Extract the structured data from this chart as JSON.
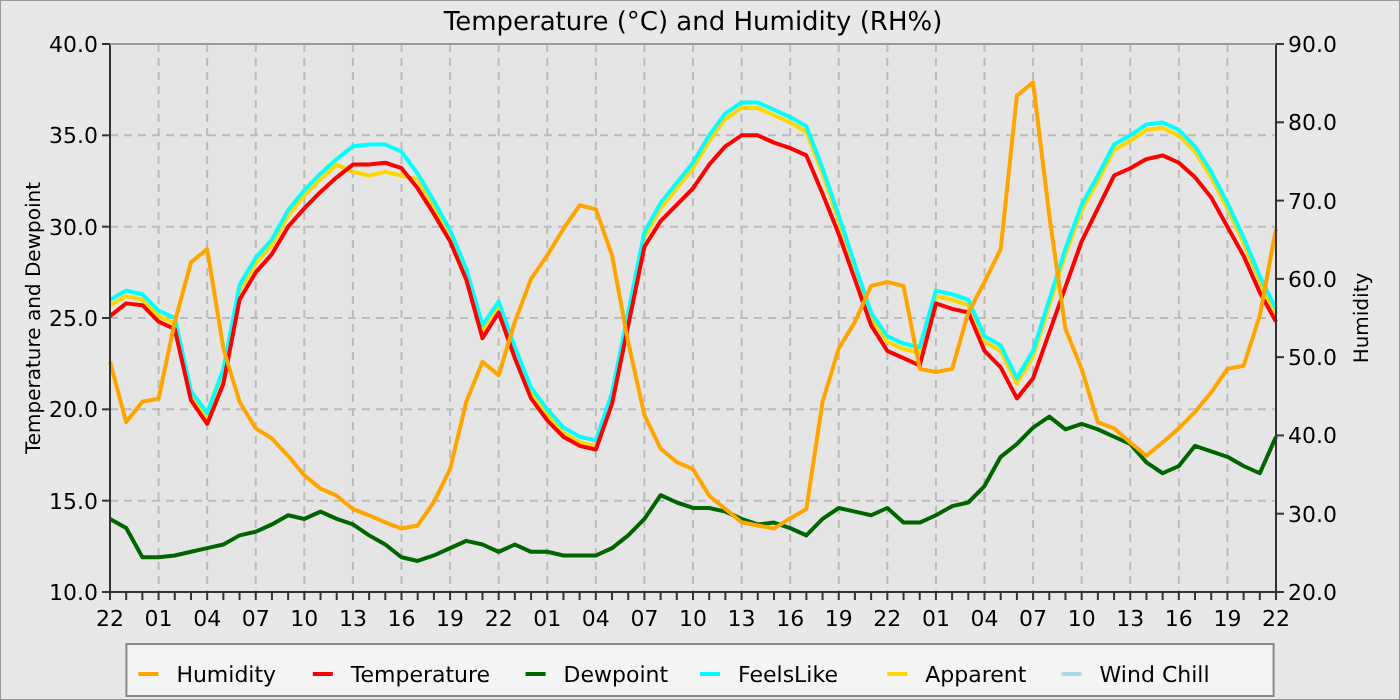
{
  "chart_data": {
    "type": "line",
    "title": "Temperature (°C) and Humidity (RH%)",
    "ylabel": "Temperature and Dewpoint",
    "y2label": "Humidity",
    "grid": true,
    "legend": "bottom",
    "categories": [
      "22",
      null,
      null,
      "01",
      null,
      null,
      "04",
      null,
      null,
      "07",
      null,
      null,
      "10",
      null,
      null,
      "13",
      null,
      null,
      "16",
      null,
      null,
      "19",
      null,
      null,
      "22",
      null,
      null,
      "01",
      null,
      null,
      "04",
      null,
      null,
      "07",
      null,
      null,
      "10",
      null,
      null,
      "13",
      null,
      null,
      "16",
      null,
      null,
      "19",
      null,
      null,
      "22",
      null,
      null,
      "01",
      null,
      null,
      "04",
      null,
      null,
      "07",
      null,
      null,
      "10",
      null,
      null,
      "13",
      null,
      null,
      "16",
      null,
      null,
      "19",
      null,
      null,
      "22"
    ],
    "ylim": [
      10,
      40
    ],
    "yticks": [
      {
        "value": 10,
        "label": "10.0"
      },
      {
        "value": 15,
        "label": "15.0"
      },
      {
        "value": 20,
        "label": "20.0"
      },
      {
        "value": 25,
        "label": "25.0"
      },
      {
        "value": 30,
        "label": "30.0"
      },
      {
        "value": 35,
        "label": "35.0"
      },
      {
        "value": 40,
        "label": "40.0"
      }
    ],
    "y2lim": [
      20,
      90
    ],
    "y2ticks": [
      {
        "value": 20,
        "label": "20.0"
      },
      {
        "value": 30,
        "label": "30.0"
      },
      {
        "value": 40,
        "label": "40.0"
      },
      {
        "value": 50,
        "label": "50.0"
      },
      {
        "value": 60,
        "label": "60.0"
      },
      {
        "value": 70,
        "label": "70.0"
      },
      {
        "value": 80,
        "label": "80.0"
      },
      {
        "value": 90,
        "label": "90.0"
      }
    ],
    "series": [
      {
        "name": "Humidity",
        "color": "#ffa500",
        "axis": "y2",
        "values": [
          49.4,
          41.7,
          44.3,
          44.7,
          54.5,
          62.1,
          63.8,
          51.1,
          44.3,
          40.9,
          39.6,
          37.4,
          34.9,
          33.2,
          32.3,
          30.6,
          29.8,
          28.9,
          28.1,
          28.5,
          31.5,
          35.7,
          44.3,
          49.4,
          47.7,
          54.5,
          60.0,
          63.0,
          66.4,
          69.4,
          68.9,
          63.0,
          51.9,
          42.6,
          38.3,
          36.6,
          35.7,
          32.3,
          30.6,
          28.9,
          28.5,
          28.1,
          29.4,
          30.6,
          44.3,
          51.1,
          54.5,
          59.1,
          59.6,
          59.1,
          48.5,
          48.1,
          48.5,
          55.7,
          59.6,
          63.8,
          83.4,
          85.1,
          68.1,
          53.6,
          48.5,
          41.7,
          40.9,
          39.1,
          37.4,
          39.1,
          40.9,
          43.0,
          45.5,
          48.5,
          48.9,
          55.3,
          66.4
        ]
      },
      {
        "name": "Temperature",
        "color": "#ff0000",
        "values": [
          25.1,
          25.8,
          25.7,
          24.8,
          24.4,
          20.5,
          19.2,
          21.4,
          26.0,
          27.5,
          28.5,
          30.0,
          31.0,
          31.9,
          32.7,
          33.4,
          33.4,
          33.5,
          33.2,
          32.1,
          30.7,
          29.2,
          27.1,
          23.9,
          25.3,
          22.8,
          20.6,
          19.4,
          18.5,
          18.0,
          17.8,
          20.3,
          24.6,
          28.9,
          30.3,
          31.2,
          32.1,
          33.4,
          34.4,
          35.0,
          35.0,
          34.6,
          34.3,
          33.9,
          31.8,
          29.6,
          27.1,
          24.6,
          23.2,
          22.8,
          22.4,
          25.8,
          25.5,
          25.3,
          23.2,
          22.3,
          20.6,
          21.7,
          24.2,
          26.7,
          29.2,
          31.0,
          32.8,
          33.2,
          33.7,
          33.9,
          33.5,
          32.7,
          31.6,
          30.0,
          28.4,
          26.4,
          24.8
        ]
      },
      {
        "name": "Dewpoint",
        "color": "#006400",
        "values": [
          14.0,
          13.5,
          11.9,
          11.9,
          12.0,
          12.2,
          12.4,
          12.6,
          13.1,
          13.3,
          13.7,
          14.2,
          14.0,
          14.4,
          14.0,
          13.7,
          13.1,
          12.6,
          11.9,
          11.7,
          12.0,
          12.4,
          12.8,
          12.6,
          12.2,
          12.6,
          12.2,
          12.2,
          12.0,
          12.0,
          12.0,
          12.4,
          13.1,
          14.0,
          15.3,
          14.9,
          14.6,
          14.6,
          14.4,
          14.0,
          13.7,
          13.8,
          13.5,
          13.1,
          14.0,
          14.6,
          14.4,
          14.2,
          14.6,
          13.8,
          13.8,
          14.2,
          14.7,
          14.9,
          15.8,
          17.4,
          18.1,
          19.0,
          19.6,
          18.9,
          19.2,
          18.9,
          18.5,
          18.1,
          17.1,
          16.5,
          16.9,
          18.0,
          17.7,
          17.4,
          16.9,
          16.5,
          18.5
        ]
      },
      {
        "name": "FeelsLike",
        "color": "#00ffff",
        "values": [
          26.0,
          26.5,
          26.3,
          25.4,
          25.0,
          21.0,
          19.8,
          22.2,
          26.8,
          28.3,
          29.3,
          30.9,
          32.0,
          32.9,
          33.7,
          34.4,
          34.5,
          34.5,
          34.1,
          32.9,
          31.4,
          29.8,
          27.7,
          24.6,
          25.9,
          23.4,
          21.2,
          20.0,
          19.0,
          18.5,
          18.3,
          20.9,
          25.3,
          29.7,
          31.3,
          32.4,
          33.5,
          35.0,
          36.2,
          36.8,
          36.8,
          36.4,
          36.0,
          35.5,
          33.2,
          30.6,
          27.9,
          25.3,
          24.0,
          23.6,
          23.4,
          26.5,
          26.3,
          26.0,
          24.0,
          23.5,
          21.7,
          23.2,
          26.0,
          28.8,
          31.2,
          32.8,
          34.5,
          35.0,
          35.6,
          35.7,
          35.3,
          34.4,
          33.0,
          31.3,
          29.4,
          27.3,
          25.5
        ]
      },
      {
        "name": "Apparent",
        "color": "#ffd700",
        "values": [
          25.7,
          26.2,
          26.0,
          25.1,
          24.7,
          20.7,
          19.5,
          21.9,
          26.5,
          28.0,
          29.0,
          30.6,
          31.7,
          32.6,
          33.4,
          33.0,
          32.8,
          33.0,
          32.8,
          32.6,
          31.1,
          29.5,
          27.4,
          24.3,
          25.6,
          23.1,
          20.9,
          19.7,
          18.7,
          18.2,
          18.0,
          20.6,
          25.0,
          29.4,
          31.0,
          32.1,
          33.2,
          34.7,
          35.9,
          36.5,
          36.5,
          36.1,
          35.7,
          35.2,
          32.9,
          30.3,
          27.6,
          25.0,
          23.7,
          23.3,
          23.1,
          26.2,
          26.0,
          25.7,
          23.7,
          23.2,
          21.4,
          22.9,
          25.7,
          28.5,
          30.9,
          32.5,
          34.2,
          34.7,
          35.3,
          35.4,
          35.0,
          34.1,
          32.7,
          31.0,
          29.1,
          27.0,
          25.2
        ]
      },
      {
        "name": "Wind Chill",
        "color": "#add8e6",
        "values": [
          null,
          null,
          null,
          null,
          null,
          null,
          null,
          null,
          null,
          null,
          null,
          null,
          null,
          null,
          null,
          null,
          null,
          null,
          null,
          null,
          null,
          null,
          null,
          null,
          null,
          null,
          null,
          null,
          null,
          null,
          null,
          null,
          null,
          null,
          null,
          null,
          null,
          null,
          null,
          null,
          null,
          null,
          null,
          null,
          null,
          null,
          null,
          null,
          null,
          null,
          null,
          null,
          null,
          null,
          null,
          null,
          null,
          null,
          null,
          null,
          null,
          null,
          null,
          null,
          null,
          null,
          null,
          null,
          null,
          null,
          null,
          null,
          null
        ]
      }
    ]
  }
}
